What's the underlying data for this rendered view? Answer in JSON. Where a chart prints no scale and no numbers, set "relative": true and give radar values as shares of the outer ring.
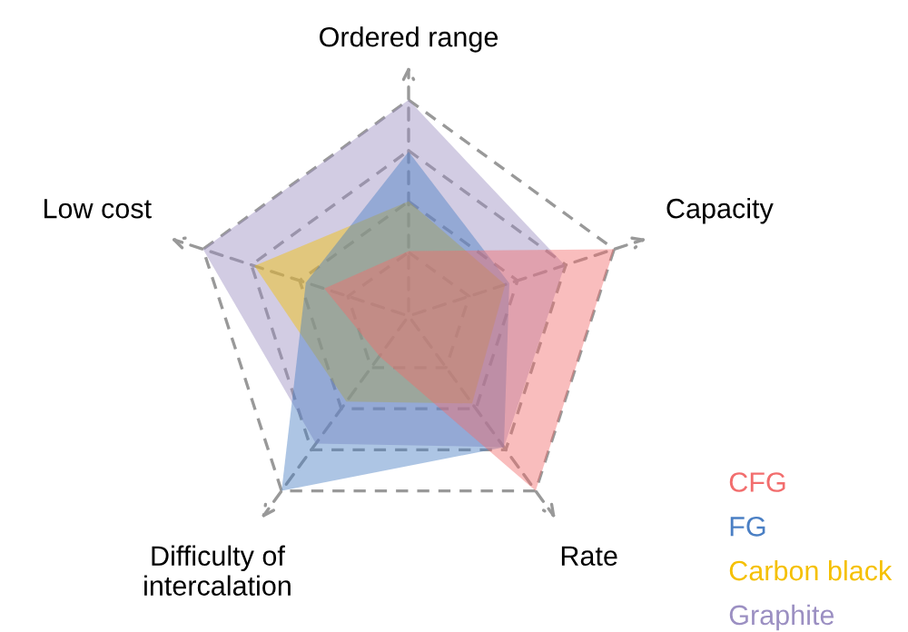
{
  "chart_data": {
    "type": "radar",
    "relative": true,
    "legend": "bottom right",
    "grid": true,
    "line_style": "dashed",
    "categories": [
      "Ordered range",
      "Capacity",
      "Rate",
      "Difficulty of\nintercalation",
      "Low cost"
    ],
    "series": [
      {
        "name": "CFG",
        "color": "#f26d6d",
        "values": [
          0.3,
          1.0,
          1.0,
          0.23,
          0.41
        ]
      },
      {
        "name": "FG",
        "color": "#4a7fc4",
        "values": [
          0.76,
          0.49,
          0.75,
          1.0,
          0.5
        ]
      },
      {
        "name": "Carbon black",
        "color": "#f5c000",
        "values": [
          0.53,
          0.47,
          0.5,
          0.49,
          0.75
        ]
      },
      {
        "name": "Graphite",
        "color": "#9b8fc2",
        "values": [
          1.0,
          0.76,
          0.75,
          0.73,
          1.0
        ]
      }
    ]
  }
}
